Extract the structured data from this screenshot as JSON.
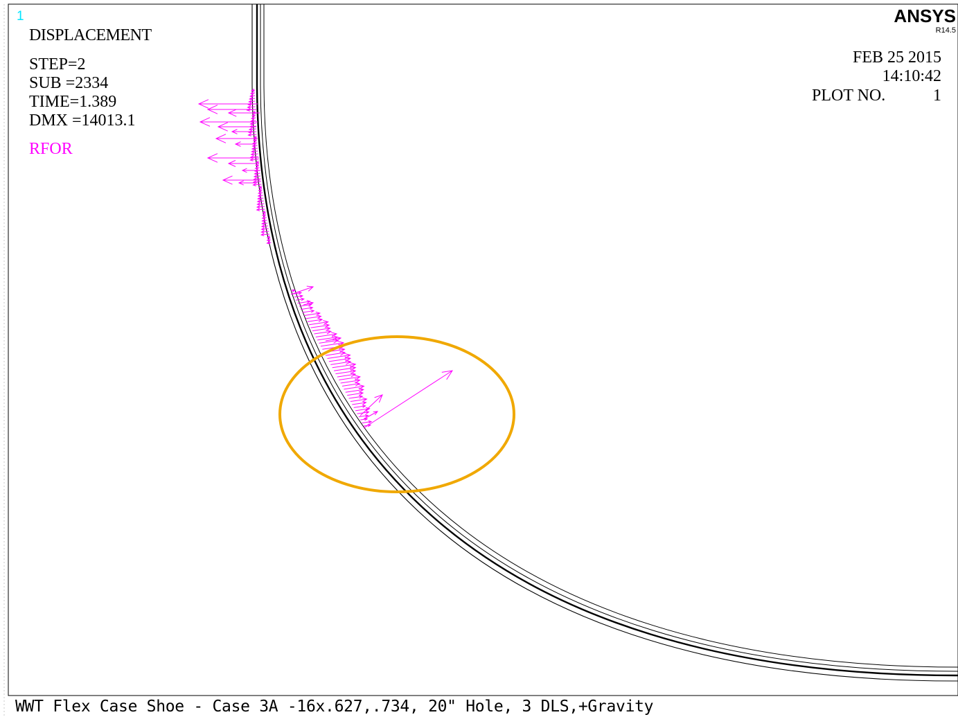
{
  "window_number": "1",
  "legend": {
    "mode": "DISPLACEMENT",
    "lines": [
      "STEP=2",
      "SUB =2334",
      "TIME=1.389",
      "DMX =14013.1"
    ],
    "vector_label": "RFOR"
  },
  "brand": {
    "name": "ANSYS",
    "release": "R14.5"
  },
  "info": {
    "date": "FEB 25 2015",
    "time": "14:10:42",
    "plot_label": "PLOT NO.",
    "plot_number": "1"
  },
  "footer_title": "WWT Flex Case Shoe - Case 3A -16x.627,.734, 20\" Hole, 3 DLS,+Gravity",
  "colors": {
    "background": "#ffffff",
    "geometry": "#000000",
    "vectors": "#ff00ff",
    "window_number": "#00e5ff",
    "highlight": "#f0a800"
  }
}
